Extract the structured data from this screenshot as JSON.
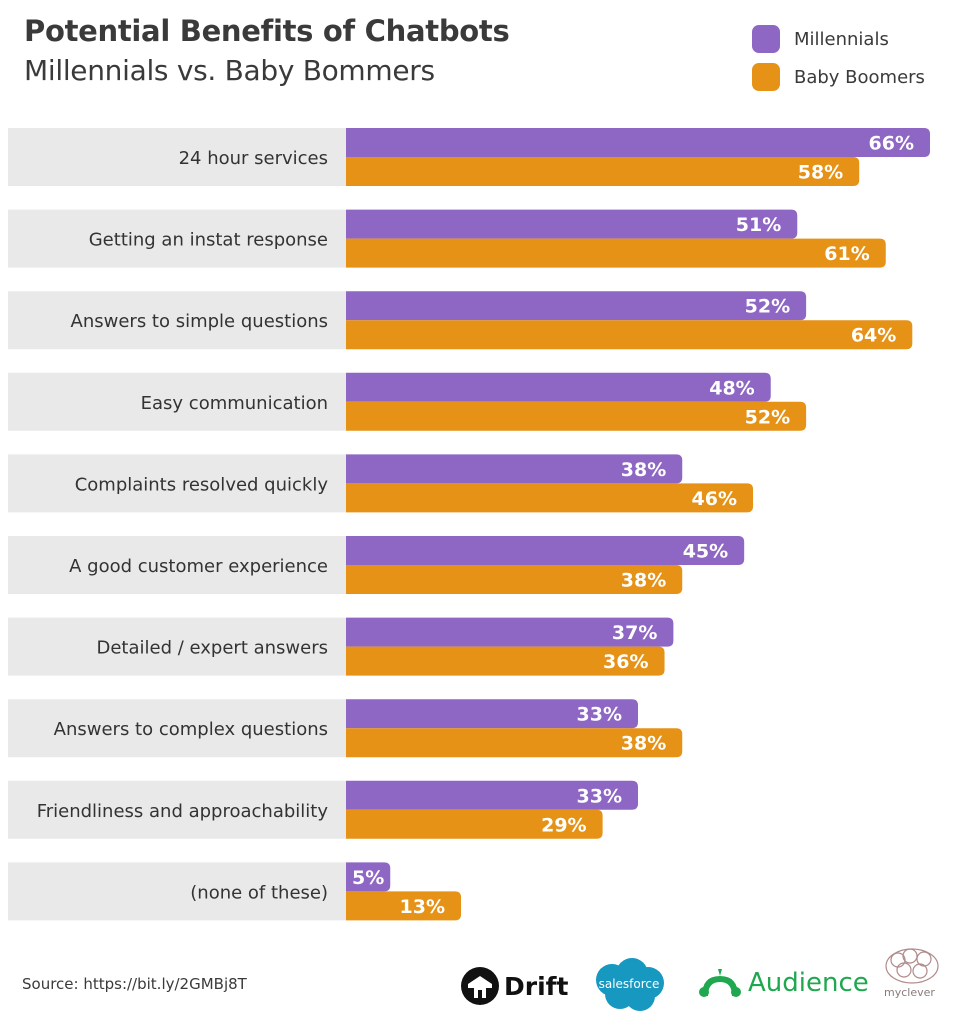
{
  "header": {
    "title": "Potential Benefits of Chatbots",
    "subtitle": "Millennials vs. Baby Bommers"
  },
  "colors": {
    "millennials": "#8e66c4",
    "baby_boomers": "#e59216",
    "label_band": "#e9e9e9",
    "text": "#333333"
  },
  "chart_data": {
    "type": "bar",
    "orientation": "horizontal",
    "title": "Potential Benefits of Chatbots",
    "subtitle": "Millennials vs. Baby Bommers",
    "xlabel": "",
    "ylabel": "",
    "xlim": [
      0,
      66
    ],
    "grid": false,
    "legend_position": "top-right",
    "value_format": "percent",
    "categories": [
      "24 hour services",
      "Getting an instat response",
      "Answers to simple questions",
      "Easy communication",
      "Complaints resolved quickly",
      "A good customer experience",
      "Detailed / expert answers",
      "Answers to complex questions",
      "Friendliness and approachability",
      "(none of these)"
    ],
    "series": [
      {
        "name": "Millennials",
        "color": "#8e66c4",
        "values": [
          66,
          51,
          52,
          48,
          38,
          45,
          37,
          33,
          33,
          5
        ]
      },
      {
        "name": "Baby Boomers",
        "color": "#e59216",
        "values": [
          58,
          61,
          64,
          52,
          46,
          38,
          36,
          38,
          29,
          13
        ]
      }
    ]
  },
  "legend": [
    {
      "label": "Millennials",
      "color": "#8e66c4"
    },
    {
      "label": "Baby Boomers",
      "color": "#e59216"
    }
  ],
  "footer": {
    "source": "Source: https://bit.ly/2GMBj8T",
    "logos": {
      "drift": "Drift",
      "salesforce": "salesforce",
      "audience": "Audience",
      "myclever": "myclever"
    }
  }
}
